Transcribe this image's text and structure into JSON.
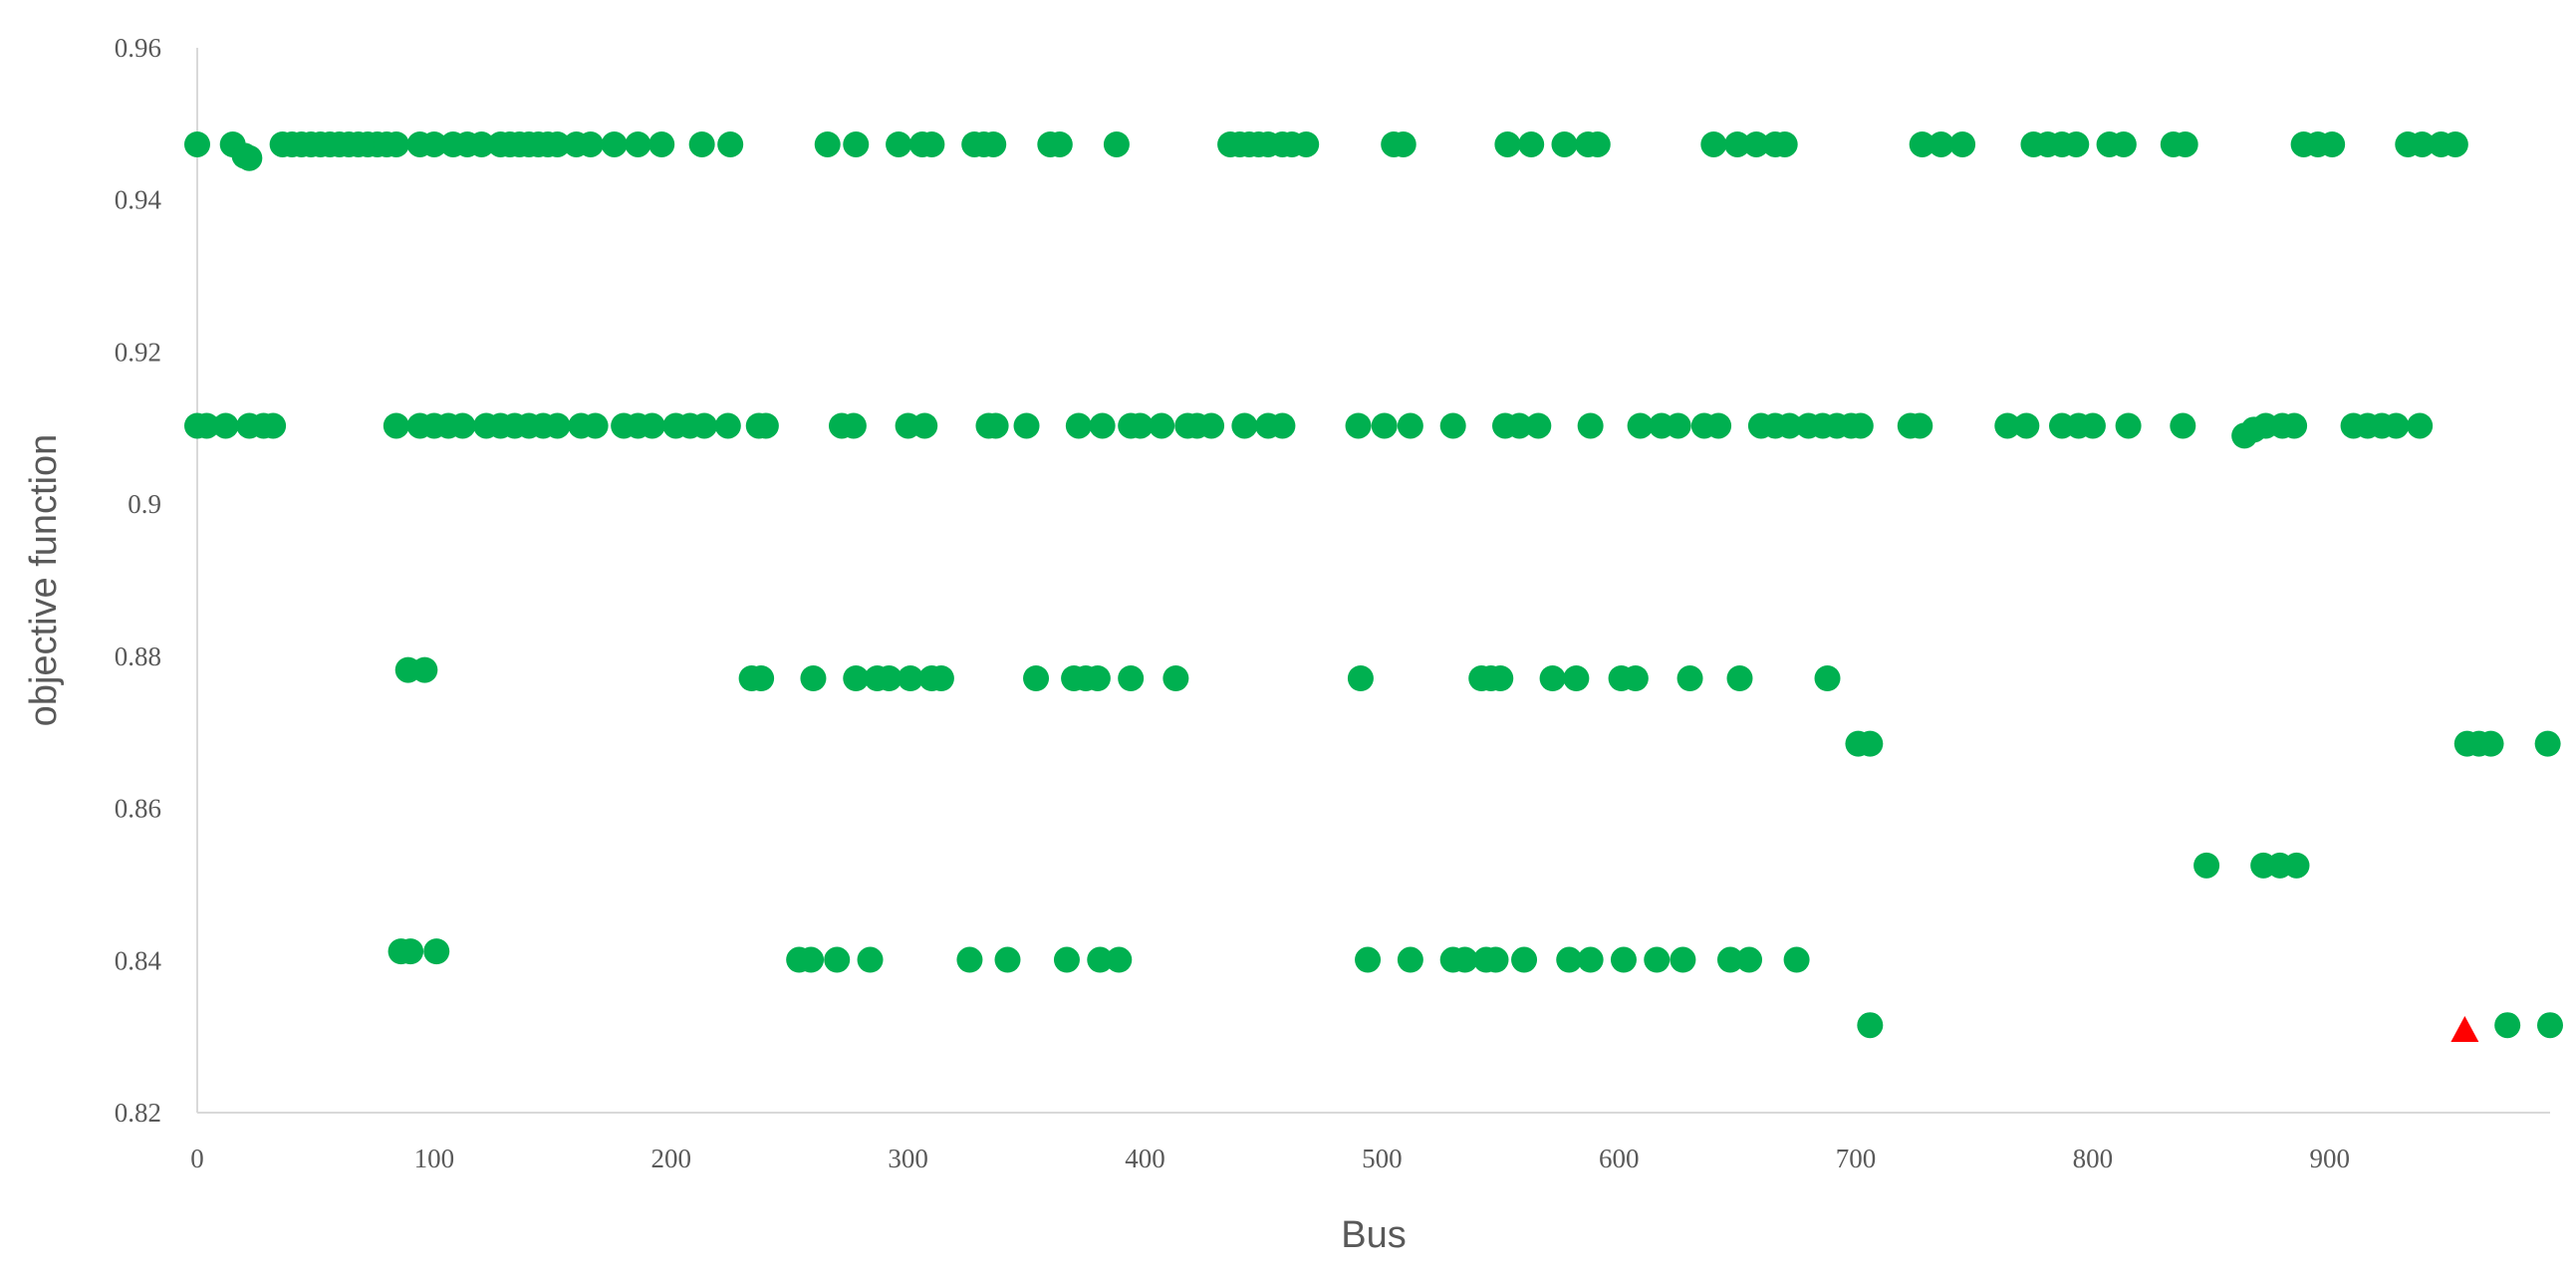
{
  "chart_data": {
    "type": "scatter",
    "title": "",
    "xlabel": "Bus",
    "ylabel": "objective function",
    "xlim": [
      0,
      993
    ],
    "ylim": [
      0.82,
      0.96
    ],
    "x_ticks": [
      0,
      100,
      200,
      300,
      400,
      500,
      600,
      700,
      800,
      900
    ],
    "x_tick_labels": [
      "0",
      "100",
      "200",
      "300",
      "400",
      "500",
      "600",
      "700",
      "800",
      "900"
    ],
    "y_ticks": [
      0.82,
      0.84,
      0.86,
      0.88,
      0.9,
      0.92,
      0.94,
      0.96
    ],
    "y_tick_labels": [
      "0.82",
      "0.84",
      "0.86",
      "0.88",
      "0.9",
      "0.92",
      "0.94",
      "0.96"
    ],
    "grid": false,
    "legend": "none",
    "colors": {
      "points": "#00b050",
      "highlight": "#ff0000",
      "axis": "#d9d9d9",
      "text": "#595959"
    },
    "series": [
      {
        "marker": "circle",
        "color": "#00b050",
        "points": [
          [
            0,
            0.9473
          ],
          [
            15,
            0.9473
          ],
          [
            20,
            0.9458
          ],
          [
            22,
            0.9455
          ],
          [
            36,
            0.9473
          ],
          [
            40,
            0.9473
          ],
          [
            44,
            0.9473
          ],
          [
            48,
            0.9473
          ],
          [
            52,
            0.9473
          ],
          [
            56,
            0.9473
          ],
          [
            60,
            0.9473
          ],
          [
            64,
            0.9473
          ],
          [
            68,
            0.9473
          ],
          [
            72,
            0.9473
          ],
          [
            76,
            0.9473
          ],
          [
            80,
            0.9473
          ],
          [
            84,
            0.9473
          ],
          [
            94,
            0.9473
          ],
          [
            100,
            0.9473
          ],
          [
            108,
            0.9473
          ],
          [
            114,
            0.9473
          ],
          [
            120,
            0.9473
          ],
          [
            128,
            0.9473
          ],
          [
            132,
            0.9473
          ],
          [
            136,
            0.9473
          ],
          [
            140,
            0.9473
          ],
          [
            144,
            0.9473
          ],
          [
            148,
            0.9473
          ],
          [
            152,
            0.9473
          ],
          [
            160,
            0.9473
          ],
          [
            166,
            0.9473
          ],
          [
            176,
            0.9473
          ],
          [
            186,
            0.9473
          ],
          [
            196,
            0.9473
          ],
          [
            213,
            0.9473
          ],
          [
            225,
            0.9473
          ],
          [
            266,
            0.9473
          ],
          [
            278,
            0.9473
          ],
          [
            296,
            0.9473
          ],
          [
            306,
            0.9473
          ],
          [
            310,
            0.9473
          ],
          [
            328,
            0.9473
          ],
          [
            332,
            0.9473
          ],
          [
            336,
            0.9473
          ],
          [
            360,
            0.9473
          ],
          [
            364,
            0.9473
          ],
          [
            388,
            0.9473
          ],
          [
            436,
            0.9473
          ],
          [
            440,
            0.9473
          ],
          [
            444,
            0.9473
          ],
          [
            448,
            0.9473
          ],
          [
            452,
            0.9473
          ],
          [
            458,
            0.9473
          ],
          [
            462,
            0.9473
          ],
          [
            468,
            0.9473
          ],
          [
            505,
            0.9473
          ],
          [
            509,
            0.9473
          ],
          [
            553,
            0.9473
          ],
          [
            563,
            0.9473
          ],
          [
            577,
            0.9473
          ],
          [
            587,
            0.9473
          ],
          [
            591,
            0.9473
          ],
          [
            640,
            0.9473
          ],
          [
            650,
            0.9473
          ],
          [
            658,
            0.9473
          ],
          [
            666,
            0.9473
          ],
          [
            670,
            0.9473
          ],
          [
            728,
            0.9473
          ],
          [
            736,
            0.9473
          ],
          [
            745,
            0.9473
          ],
          [
            775,
            0.9473
          ],
          [
            781,
            0.9473
          ],
          [
            787,
            0.9473
          ],
          [
            793,
            0.9473
          ],
          [
            807,
            0.9473
          ],
          [
            813,
            0.9473
          ],
          [
            834,
            0.9473
          ],
          [
            839,
            0.9473
          ],
          [
            889,
            0.9473
          ],
          [
            895,
            0.9473
          ],
          [
            901,
            0.9473
          ],
          [
            933,
            0.9473
          ],
          [
            939,
            0.9473
          ],
          [
            947,
            0.9473
          ],
          [
            953,
            0.9473
          ],
          [
            0,
            0.9103
          ],
          [
            4,
            0.9103
          ],
          [
            12,
            0.9103
          ],
          [
            22,
            0.9103
          ],
          [
            28,
            0.9103
          ],
          [
            32,
            0.9103
          ],
          [
            84,
            0.9103
          ],
          [
            94,
            0.9103
          ],
          [
            100,
            0.9103
          ],
          [
            106,
            0.9103
          ],
          [
            112,
            0.9103
          ],
          [
            122,
            0.9103
          ],
          [
            128,
            0.9103
          ],
          [
            134,
            0.9103
          ],
          [
            140,
            0.9103
          ],
          [
            146,
            0.9103
          ],
          [
            152,
            0.9103
          ],
          [
            162,
            0.9103
          ],
          [
            168,
            0.9103
          ],
          [
            180,
            0.9103
          ],
          [
            186,
            0.9103
          ],
          [
            192,
            0.9103
          ],
          [
            202,
            0.9103
          ],
          [
            208,
            0.9103
          ],
          [
            214,
            0.9103
          ],
          [
            224,
            0.9103
          ],
          [
            237,
            0.9103
          ],
          [
            240,
            0.9103
          ],
          [
            272,
            0.9103
          ],
          [
            277,
            0.9103
          ],
          [
            300,
            0.9103
          ],
          [
            307,
            0.9103
          ],
          [
            334,
            0.9103
          ],
          [
            337,
            0.9103
          ],
          [
            350,
            0.9103
          ],
          [
            372,
            0.9103
          ],
          [
            382,
            0.9103
          ],
          [
            394,
            0.9103
          ],
          [
            398,
            0.9103
          ],
          [
            407,
            0.9103
          ],
          [
            418,
            0.9103
          ],
          [
            422,
            0.9103
          ],
          [
            428,
            0.9103
          ],
          [
            442,
            0.9103
          ],
          [
            452,
            0.9103
          ],
          [
            458,
            0.9103
          ],
          [
            490,
            0.9103
          ],
          [
            501,
            0.9103
          ],
          [
            512,
            0.9103
          ],
          [
            530,
            0.9103
          ],
          [
            552,
            0.9103
          ],
          [
            558,
            0.9103
          ],
          [
            566,
            0.9103
          ],
          [
            588,
            0.9103
          ],
          [
            609,
            0.9103
          ],
          [
            618,
            0.9103
          ],
          [
            625,
            0.9103
          ],
          [
            636,
            0.9103
          ],
          [
            642,
            0.9103
          ],
          [
            660,
            0.9103
          ],
          [
            666,
            0.9103
          ],
          [
            672,
            0.9103
          ],
          [
            680,
            0.9103
          ],
          [
            686,
            0.9103
          ],
          [
            692,
            0.9103
          ],
          [
            698,
            0.9103
          ],
          [
            702,
            0.9103
          ],
          [
            723,
            0.9103
          ],
          [
            727,
            0.9103
          ],
          [
            764,
            0.9103
          ],
          [
            772,
            0.9103
          ],
          [
            787,
            0.9103
          ],
          [
            794,
            0.9103
          ],
          [
            800,
            0.9103
          ],
          [
            815,
            0.9103
          ],
          [
            838,
            0.9103
          ],
          [
            864,
            0.909
          ],
          [
            868,
            0.9098
          ],
          [
            873,
            0.9103
          ],
          [
            880,
            0.9103
          ],
          [
            885,
            0.9103
          ],
          [
            910,
            0.9103
          ],
          [
            916,
            0.9103
          ],
          [
            922,
            0.9103
          ],
          [
            928,
            0.9103
          ],
          [
            938,
            0.9103
          ],
          [
            89,
            0.8782
          ],
          [
            96,
            0.8782
          ],
          [
            234,
            0.8771
          ],
          [
            238,
            0.8771
          ],
          [
            260,
            0.8771
          ],
          [
            278,
            0.8771
          ],
          [
            287,
            0.8771
          ],
          [
            292,
            0.8771
          ],
          [
            301,
            0.8771
          ],
          [
            310,
            0.8771
          ],
          [
            314,
            0.8771
          ],
          [
            354,
            0.8771
          ],
          [
            370,
            0.8771
          ],
          [
            375,
            0.8771
          ],
          [
            380,
            0.8771
          ],
          [
            394,
            0.8771
          ],
          [
            413,
            0.8771
          ],
          [
            491,
            0.8771
          ],
          [
            542,
            0.8771
          ],
          [
            546,
            0.8771
          ],
          [
            550,
            0.8771
          ],
          [
            572,
            0.8771
          ],
          [
            582,
            0.8771
          ],
          [
            601,
            0.8771
          ],
          [
            607,
            0.8771
          ],
          [
            630,
            0.8771
          ],
          [
            651,
            0.8771
          ],
          [
            688,
            0.8771
          ],
          [
            701,
            0.8685
          ],
          [
            706,
            0.8685
          ],
          [
            958,
            0.8685
          ],
          [
            963,
            0.8685
          ],
          [
            968,
            0.8685
          ],
          [
            992,
            0.8685
          ],
          [
            848,
            0.8525
          ],
          [
            872,
            0.8525
          ],
          [
            879,
            0.8525
          ],
          [
            886,
            0.8525
          ],
          [
            86,
            0.8412
          ],
          [
            90,
            0.8412
          ],
          [
            101,
            0.8412
          ],
          [
            254,
            0.8401
          ],
          [
            259,
            0.8401
          ],
          [
            270,
            0.8401
          ],
          [
            284,
            0.8401
          ],
          [
            326,
            0.8401
          ],
          [
            342,
            0.8401
          ],
          [
            367,
            0.8401
          ],
          [
            381,
            0.8401
          ],
          [
            389,
            0.8401
          ],
          [
            494,
            0.8401
          ],
          [
            512,
            0.8401
          ],
          [
            530,
            0.8401
          ],
          [
            535,
            0.8401
          ],
          [
            544,
            0.8401
          ],
          [
            548,
            0.8401
          ],
          [
            560,
            0.8401
          ],
          [
            579,
            0.8401
          ],
          [
            588,
            0.8401
          ],
          [
            602,
            0.8401
          ],
          [
            616,
            0.8401
          ],
          [
            627,
            0.8401
          ],
          [
            647,
            0.8401
          ],
          [
            655,
            0.8401
          ],
          [
            675,
            0.8401
          ],
          [
            706,
            0.8315
          ],
          [
            975,
            0.8315
          ],
          [
            993,
            0.8315
          ]
        ]
      },
      {
        "marker": "triangle",
        "color": "#ff0000",
        "points": [
          [
            957,
            0.831
          ]
        ]
      }
    ]
  }
}
